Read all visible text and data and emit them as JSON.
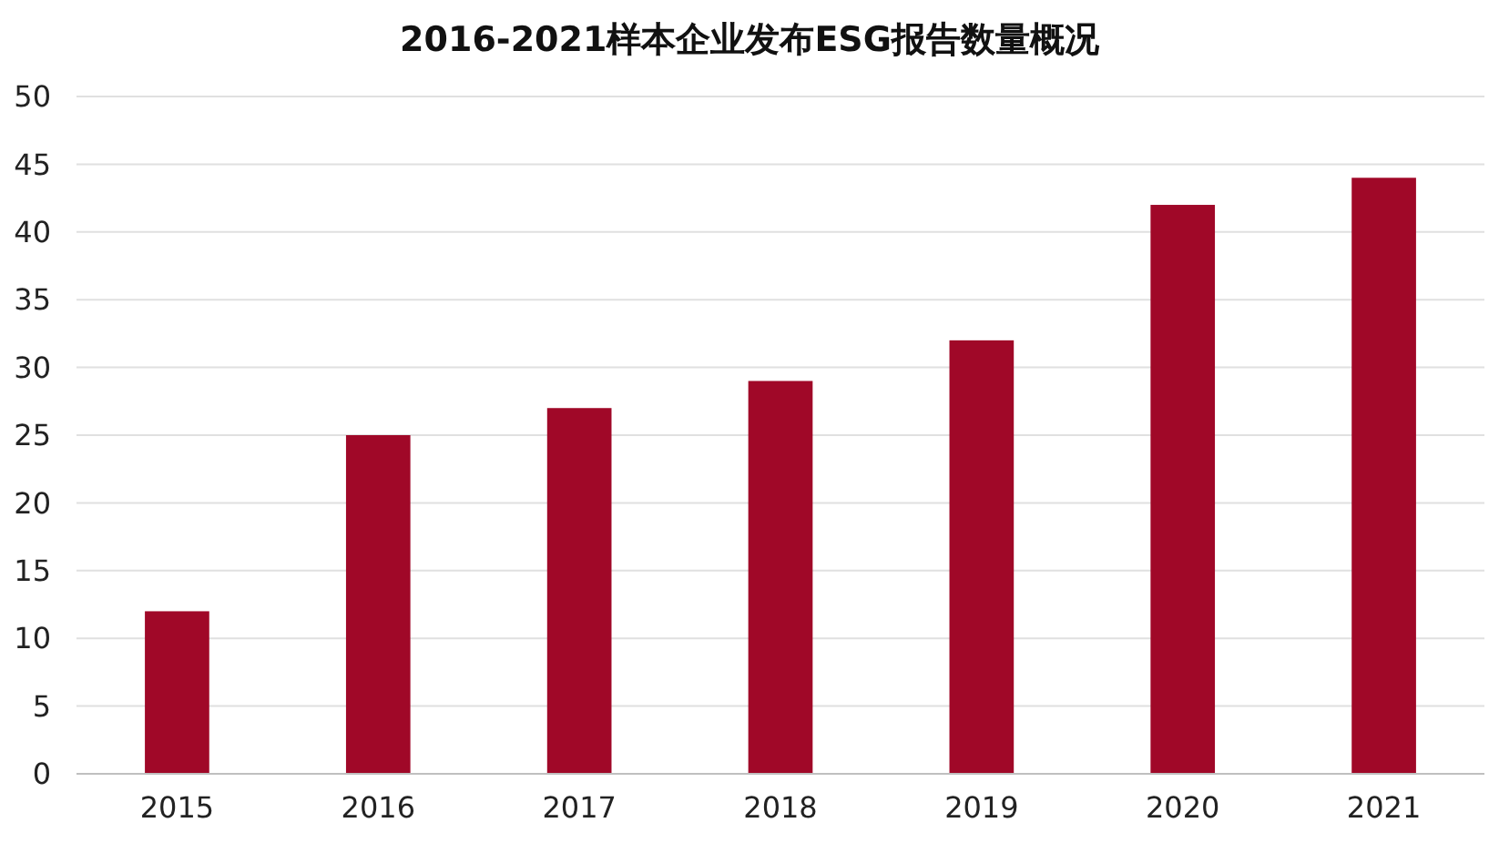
{
  "chart_data": {
    "type": "bar",
    "title": "2016-2021样本企业发布ESG报告数量概况",
    "categories": [
      "2015",
      "2016",
      "2017",
      "2018",
      "2019",
      "2020",
      "2021"
    ],
    "values": [
      12,
      25,
      27,
      29,
      32,
      42,
      44
    ],
    "color": "#a00828",
    "ylim": [
      0,
      50
    ],
    "yticks": [
      0,
      5,
      10,
      15,
      20,
      25,
      30,
      35,
      40,
      45,
      50
    ],
    "grid": "y"
  }
}
